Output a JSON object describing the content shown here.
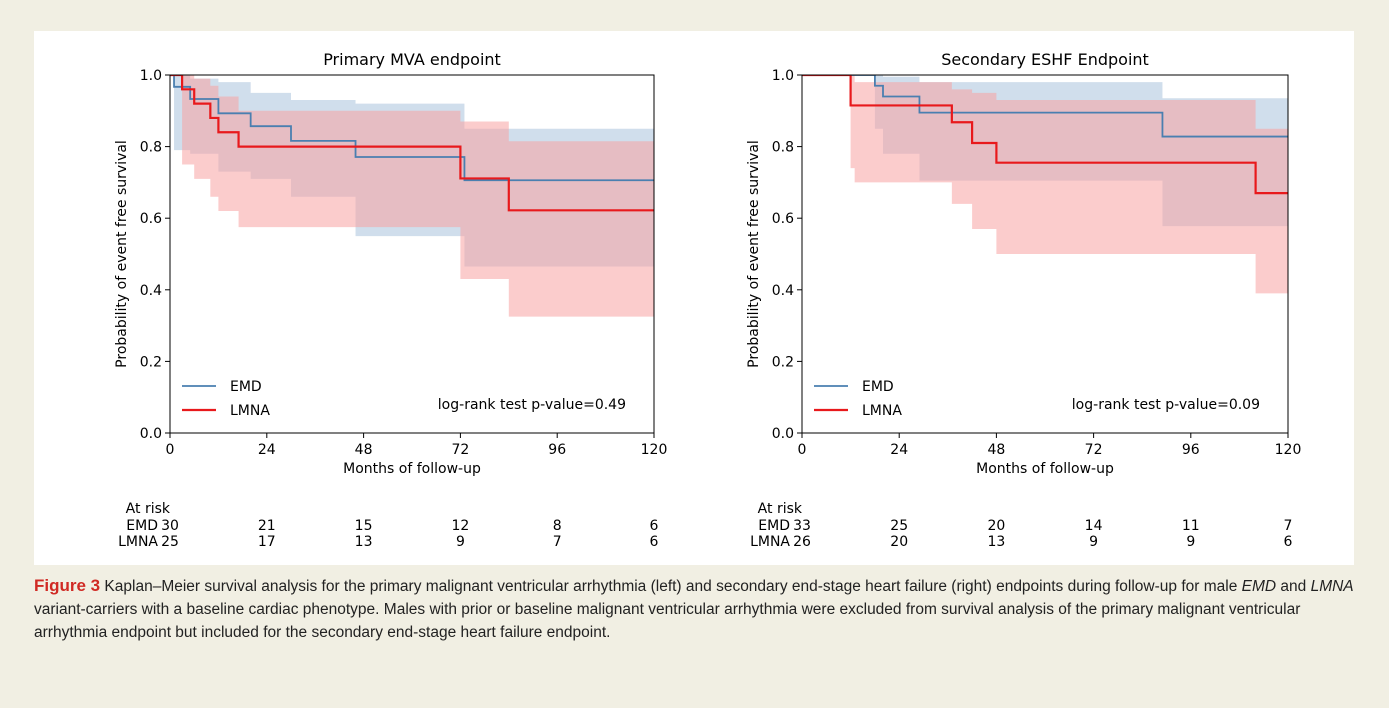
{
  "chart_data": [
    {
      "type": "line",
      "subtype": "kaplan-meier step with confidence bands",
      "title": "Primary MVA endpoint",
      "xlabel": "Months of follow-up",
      "ylabel": "Probability of event free survival",
      "xlim": [
        0,
        120
      ],
      "ylim": [
        0,
        1.0
      ],
      "xticks": [
        0,
        24,
        48,
        72,
        96,
        120
      ],
      "yticks": [
        0.0,
        0.2,
        0.4,
        0.6,
        0.8,
        1.0
      ],
      "legend_position": "lower-left",
      "annotation": "log-rank test p-value=0.49",
      "series": [
        {
          "name": "EMD",
          "color": "#4a7fb0",
          "band_color": "#a9c3dd",
          "x": [
            0,
            1,
            3,
            5,
            6,
            12,
            20,
            30,
            46,
            73,
            120
          ],
          "y": [
            1.0,
            0.967,
            0.967,
            0.933,
            0.933,
            0.893,
            0.857,
            0.816,
            0.771,
            0.706,
            0.706
          ],
          "ci_lower": [
            1.0,
            0.79,
            0.79,
            0.78,
            0.78,
            0.73,
            0.71,
            0.66,
            0.55,
            0.465,
            0.465
          ],
          "ci_upper": [
            1.0,
            1.0,
            1.0,
            0.99,
            0.99,
            0.98,
            0.95,
            0.93,
            0.92,
            0.85,
            0.85
          ]
        },
        {
          "name": "LMNA",
          "color": "#e8191c",
          "band_color": "#f7a3a3",
          "x": [
            0,
            1,
            3,
            6,
            10,
            12,
            17,
            72,
            84,
            120
          ],
          "y": [
            1.0,
            1.0,
            0.96,
            0.92,
            0.88,
            0.84,
            0.8,
            0.711,
            0.622,
            0.622
          ],
          "ci_lower": [
            1.0,
            1.0,
            0.75,
            0.71,
            0.66,
            0.62,
            0.575,
            0.43,
            0.325,
            0.325
          ],
          "ci_upper": [
            1.0,
            1.0,
            1.0,
            0.99,
            0.97,
            0.94,
            0.9,
            0.87,
            0.815,
            0.815
          ]
        }
      ],
      "at_risk": {
        "label": "At risk",
        "times": [
          0,
          24,
          48,
          72,
          96,
          120
        ],
        "rows": [
          {
            "name": "EMD",
            "counts": [
              "30",
              "21",
              "15",
              "12",
              "8",
              "6"
            ]
          },
          {
            "name": "LMNA",
            "counts": [
              "25",
              "17",
              "13",
              "9",
              "7",
              "6"
            ]
          }
        ]
      }
    },
    {
      "type": "line",
      "subtype": "kaplan-meier step with confidence bands",
      "title": "Secondary ESHF Endpoint",
      "xlabel": "Months of follow-up",
      "ylabel": "Probability of event free survival",
      "xlim": [
        0,
        120
      ],
      "ylim": [
        0,
        1.0
      ],
      "xticks": [
        0,
        24,
        48,
        72,
        96,
        120
      ],
      "yticks": [
        0.0,
        0.2,
        0.4,
        0.6,
        0.8,
        1.0
      ],
      "legend_position": "lower-left",
      "annotation": "log-rank test p-value=0.09",
      "series": [
        {
          "name": "EMD",
          "color": "#4a7fb0",
          "band_color": "#a9c3dd",
          "x": [
            0,
            18,
            20,
            24,
            29,
            89,
            120
          ],
          "y": [
            1.0,
            0.97,
            0.94,
            0.94,
            0.895,
            0.828,
            0.828
          ],
          "ci_lower": [
            1.0,
            0.85,
            0.78,
            0.78,
            0.705,
            0.578,
            0.578
          ],
          "ci_upper": [
            1.0,
            1.0,
            0.995,
            0.995,
            0.98,
            0.935,
            0.935
          ]
        },
        {
          "name": "LMNA",
          "color": "#e8191c",
          "band_color": "#f7a3a3",
          "x": [
            0,
            12,
            13,
            37,
            42,
            48,
            112,
            120
          ],
          "y": [
            1.0,
            0.915,
            0.915,
            0.868,
            0.81,
            0.755,
            0.67,
            0.67
          ],
          "ci_lower": [
            1.0,
            0.74,
            0.7,
            0.64,
            0.57,
            0.5,
            0.39,
            0.39
          ],
          "ci_upper": [
            1.0,
            1.0,
            0.98,
            0.96,
            0.95,
            0.93,
            0.85,
            0.85
          ]
        }
      ],
      "at_risk": {
        "label": "At risk",
        "times": [
          0,
          24,
          48,
          72,
          96,
          120
        ],
        "rows": [
          {
            "name": "EMD",
            "counts": [
              "33",
              "25",
              "20",
              "14",
              "11",
              "7"
            ]
          },
          {
            "name": "LMNA",
            "counts": [
              "26",
              "20",
              "13",
              "9",
              "9",
              "6"
            ]
          }
        ]
      }
    }
  ],
  "caption": {
    "label": "Figure 3",
    "part1": " Kaplan–Meier survival analysis for the primary malignant ventricular arrhythmia (left) and secondary end-stage heart failure (right) endpoints during follow-up for male ",
    "emd": "EMD",
    "part2": " and ",
    "lmna": "LMNA",
    "part3": " variant-carriers with a baseline cardiac phenotype. Males with prior or baseline malignant ventricular arrhythmia were excluded from survival analysis of the primary malignant ventricular arrhythmia endpoint but included for the secondary end-stage heart failure endpoint."
  }
}
